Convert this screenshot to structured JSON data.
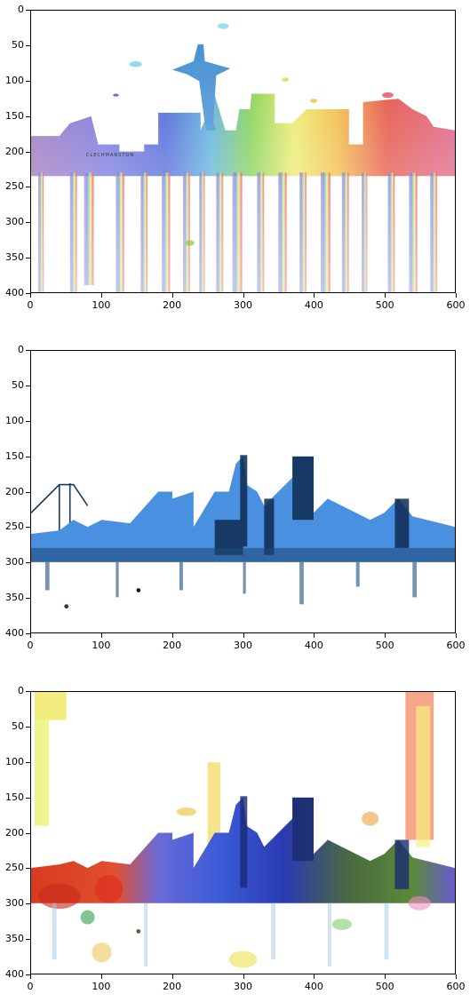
{
  "figure": {
    "panels": [
      {
        "name": "seattle-watercolor",
        "image_description_name": "rainbow-watercolor-seattle-skyline",
        "watermark": "CLECHMANSTON"
      },
      {
        "name": "san-francisco-blue",
        "image_description_name": "blue-watercolor-san-francisco-skyline"
      },
      {
        "name": "style-transfer-result",
        "image_description_name": "rainbow-style-san-francisco-skyline"
      }
    ],
    "y_ticks": [
      "0",
      "50",
      "100",
      "150",
      "200",
      "250",
      "300",
      "350",
      "400"
    ],
    "x_ticks": [
      "0",
      "100",
      "200",
      "300",
      "400",
      "500",
      "600"
    ],
    "colors": {
      "purple": "#7a5bb8",
      "blue": "#2a48d0",
      "cyan": "#3aa0d8",
      "green": "#6cc830",
      "yellow": "#f0e040",
      "orange": "#f0a020",
      "red": "#e03020",
      "pink": "#d84060",
      "navy": "#0e2a50",
      "sky": "#5a9ee8"
    }
  }
}
